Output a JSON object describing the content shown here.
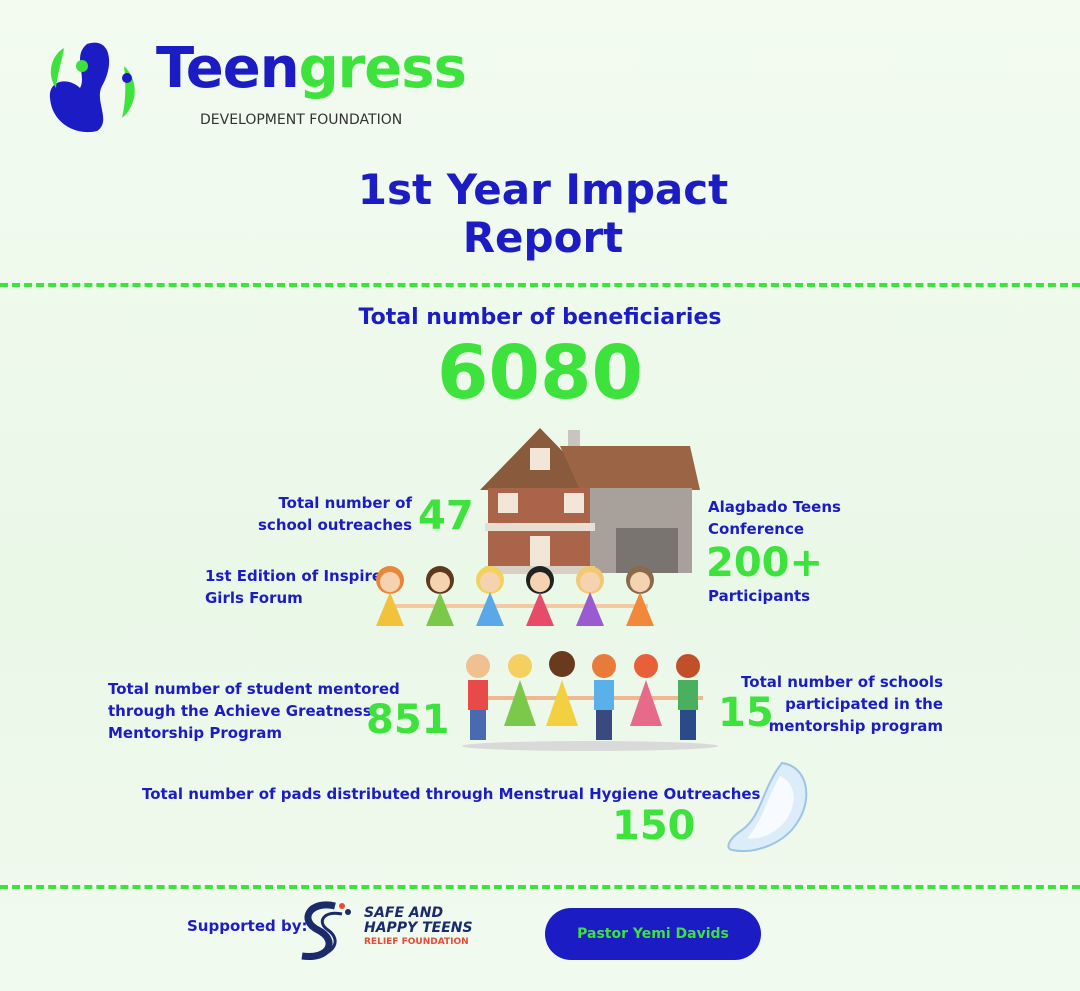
{
  "header": {
    "brand_part1": "Teen",
    "brand_part2": "gress",
    "subtitle": "DEVELOPMENT FOUNDATION"
  },
  "title": {
    "line1": "1st Year Impact",
    "line2": "Report"
  },
  "total": {
    "label": "Total number of beneficiaries",
    "value": 6080
  },
  "stats": [
    {
      "label_lines": [
        "Total number of",
        "school outreaches"
      ],
      "value": 47
    },
    {
      "label_lines": [
        "Alagbado Teens",
        "Conference"
      ],
      "value": "200+",
      "note": "Participants"
    },
    {
      "label_lines": [
        "1st Edition of Inspire",
        "Girls Forum"
      ]
    },
    {
      "label_lines": [
        "Total number of student mentored",
        "through the Achieve Greatness",
        "Mentorship Program"
      ],
      "value": 851
    },
    {
      "label_lines": [
        "Total number of schools",
        "participated in the",
        "mentorship program"
      ],
      "value": 15
    },
    {
      "label_lines": [
        "Total number of pads distributed through Menstrual Hygiene Outreaches"
      ],
      "value": 150
    }
  ],
  "footer": {
    "supported_by": "Supported by:",
    "sponsor_line1": "SAFE AND",
    "sponsor_line2": "HAPPY TEENS",
    "sponsor_line3": "RELIEF FOUNDATION",
    "person": "Pastor Yemi Davids"
  }
}
